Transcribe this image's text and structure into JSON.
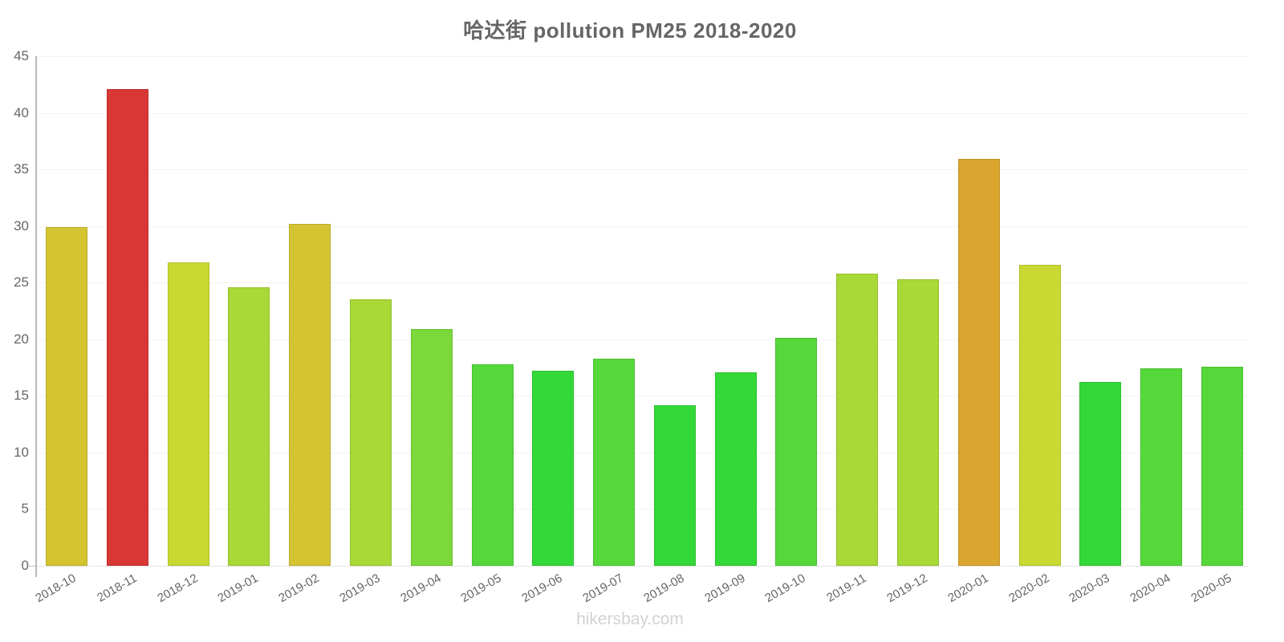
{
  "header": {
    "title": "哈达街 pollution PM25 2018-2020"
  },
  "footer": {
    "site_label": "hikersbay.com"
  },
  "chart_data": {
    "type": "bar",
    "title": "哈达街 pollution PM25 2018-2020",
    "xlabel": "",
    "ylabel": "",
    "ylim": [
      0,
      45
    ],
    "ytick_step": 5,
    "yticks": [
      0,
      5,
      10,
      15,
      20,
      25,
      30,
      35,
      40,
      45
    ],
    "grid": "horizontal",
    "legend": "none",
    "categories": [
      "2018-10",
      "2018-11",
      "2018-12",
      "2019-01",
      "2019-02",
      "2019-03",
      "2019-04",
      "2019-05",
      "2019-06",
      "2019-07",
      "2019-08",
      "2019-09",
      "2019-10",
      "2019-11",
      "2019-12",
      "2020-01",
      "2020-02",
      "2020-03",
      "2020-04",
      "2020-05"
    ],
    "values": [
      29.9,
      42.1,
      26.8,
      24.6,
      30.2,
      23.5,
      20.9,
      17.8,
      17.2,
      18.3,
      14.2,
      17.1,
      20.1,
      25.8,
      25.3,
      35.9,
      26.6,
      16.2,
      17.4,
      17.6
    ],
    "bar_colors": [
      "#d4c432",
      "#d93636",
      "#c9d932",
      "#a8d936",
      "#d4c432",
      "#a8d936",
      "#7cd93c",
      "#55d83a",
      "#33d936",
      "#55d83a",
      "#33d936",
      "#33d936",
      "#55d83a",
      "#a8d936",
      "#a8d936",
      "#dba62f",
      "#c9d932",
      "#33d936",
      "#55d83a",
      "#55d83a"
    ],
    "colors_meaning": {
      "red": "#d93636",
      "orange": "#dba62f",
      "dark_yellow": "#d4c432",
      "yellow_green": "#c9d932",
      "green_yellow": "#a8d936",
      "green": "#55d83a",
      "bright_green": "#33d936"
    },
    "axis_color": "#b9b9b9",
    "label_color": "#666666"
  }
}
